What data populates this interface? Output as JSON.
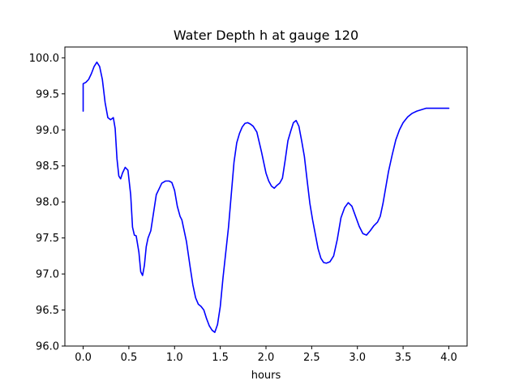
{
  "chart_data": {
    "type": "line",
    "title": "Water Depth h at gauge 120",
    "xlabel": "hours",
    "ylabel": "",
    "xlim": [
      -0.2,
      4.2
    ],
    "ylim": [
      96.0,
      100.15
    ],
    "xticks": [
      0.0,
      0.5,
      1.0,
      1.5,
      2.0,
      2.5,
      3.0,
      3.5,
      4.0
    ],
    "xtick_labels": [
      "0.0",
      "0.5",
      "1.0",
      "1.5",
      "2.0",
      "2.5",
      "3.0",
      "3.5",
      "4.0"
    ],
    "yticks": [
      96.0,
      96.5,
      97.0,
      97.5,
      98.0,
      98.5,
      99.0,
      99.5,
      100.0
    ],
    "ytick_labels": [
      "96.0",
      "96.5",
      "97.0",
      "97.5",
      "98.0",
      "98.5",
      "99.0",
      "99.5",
      "100.0"
    ],
    "grid": false,
    "series": [
      {
        "color": "#0000ff",
        "x": [
          0.0,
          0.0,
          0.03,
          0.06,
          0.09,
          0.12,
          0.15,
          0.18,
          0.21,
          0.24,
          0.27,
          0.3,
          0.33,
          0.35,
          0.37,
          0.39,
          0.41,
          0.43,
          0.46,
          0.49,
          0.52,
          0.54,
          0.56,
          0.58,
          0.61,
          0.63,
          0.65,
          0.67,
          0.69,
          0.71,
          0.74,
          0.77,
          0.8,
          0.83,
          0.86,
          0.9,
          0.94,
          0.97,
          1.0,
          1.03,
          1.06,
          1.08,
          1.1,
          1.13,
          1.17,
          1.2,
          1.23,
          1.26,
          1.29,
          1.32,
          1.35,
          1.38,
          1.41,
          1.44,
          1.47,
          1.5,
          1.53,
          1.56,
          1.59,
          1.62,
          1.65,
          1.68,
          1.71,
          1.74,
          1.77,
          1.8,
          1.83,
          1.86,
          1.9,
          1.95,
          2.0,
          2.03,
          2.06,
          2.09,
          2.12,
          2.15,
          2.18,
          2.21,
          2.24,
          2.27,
          2.3,
          2.33,
          2.36,
          2.39,
          2.42,
          2.45,
          2.48,
          2.51,
          2.54,
          2.57,
          2.6,
          2.63,
          2.66,
          2.7,
          2.74,
          2.78,
          2.82,
          2.86,
          2.9,
          2.94,
          2.98,
          3.02,
          3.06,
          3.1,
          3.14,
          3.18,
          3.22,
          3.25,
          3.28,
          3.31,
          3.34,
          3.38,
          3.42,
          3.46,
          3.5,
          3.55,
          3.6,
          3.65,
          3.7,
          3.75,
          3.8,
          3.85,
          3.9,
          3.95,
          4.0
        ],
        "y": [
          99.26,
          99.64,
          99.66,
          99.7,
          99.78,
          99.88,
          99.94,
          99.88,
          99.7,
          99.38,
          99.17,
          99.14,
          99.17,
          99.02,
          98.6,
          98.36,
          98.32,
          98.4,
          98.48,
          98.44,
          98.1,
          97.65,
          97.54,
          97.53,
          97.3,
          97.03,
          96.98,
          97.12,
          97.38,
          97.5,
          97.6,
          97.85,
          98.1,
          98.18,
          98.26,
          98.29,
          98.29,
          98.27,
          98.16,
          97.94,
          97.8,
          97.75,
          97.63,
          97.45,
          97.1,
          96.85,
          96.67,
          96.58,
          96.55,
          96.5,
          96.38,
          96.28,
          96.22,
          96.19,
          96.3,
          96.55,
          96.95,
          97.3,
          97.65,
          98.1,
          98.55,
          98.82,
          98.95,
          99.04,
          99.09,
          99.1,
          99.08,
          99.05,
          98.97,
          98.7,
          98.4,
          98.29,
          98.22,
          98.19,
          98.23,
          98.26,
          98.33,
          98.58,
          98.85,
          98.98,
          99.1,
          99.13,
          99.05,
          98.85,
          98.63,
          98.3,
          97.98,
          97.75,
          97.55,
          97.35,
          97.22,
          97.16,
          97.15,
          97.17,
          97.25,
          97.48,
          97.78,
          97.92,
          97.99,
          97.94,
          97.8,
          97.66,
          97.56,
          97.54,
          97.6,
          97.67,
          97.72,
          97.8,
          97.98,
          98.2,
          98.42,
          98.65,
          98.86,
          99.0,
          99.1,
          99.18,
          99.23,
          99.26,
          99.28,
          99.3,
          99.3,
          99.3,
          99.3,
          99.3,
          99.3
        ]
      }
    ]
  }
}
